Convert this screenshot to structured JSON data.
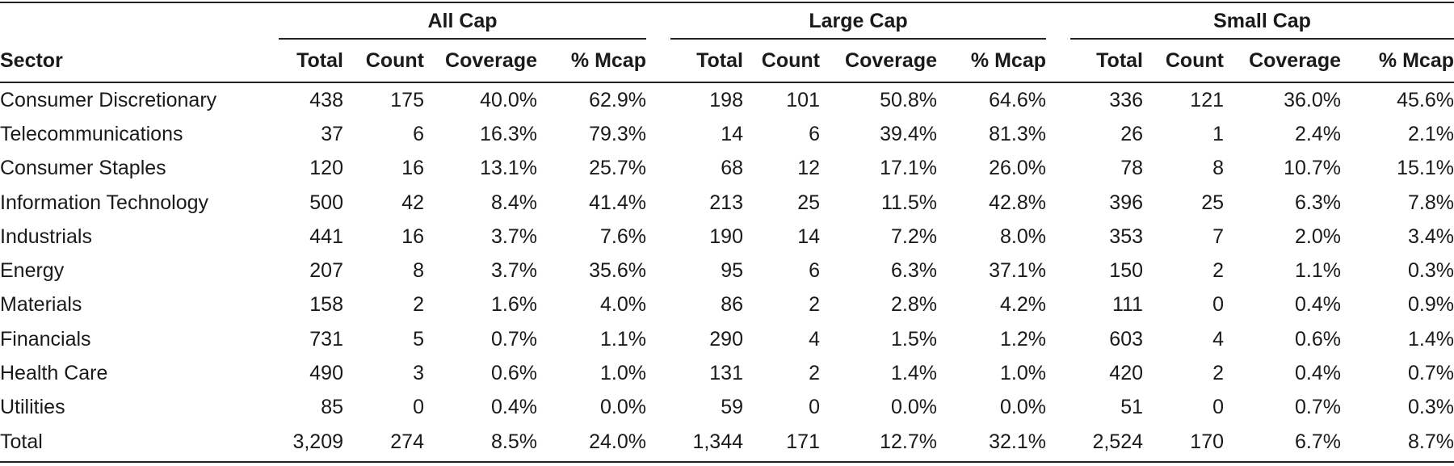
{
  "groups": {
    "all_cap": "All Cap",
    "large_cap": "Large Cap",
    "small_cap": "Small Cap"
  },
  "columns": {
    "sector": "Sector",
    "total": "Total",
    "count": "Count",
    "coverage": "Coverage",
    "mcap": "% Mcap"
  },
  "rows": [
    {
      "sector": "Consumer Discretionary",
      "all": [
        "438",
        "175",
        "40.0%",
        "62.9%"
      ],
      "large": [
        "198",
        "101",
        "50.8%",
        "64.6%"
      ],
      "small": [
        "336",
        "121",
        "36.0%",
        "45.6%"
      ]
    },
    {
      "sector": "Telecommunications",
      "all": [
        "37",
        "6",
        "16.3%",
        "79.3%"
      ],
      "large": [
        "14",
        "6",
        "39.4%",
        "81.3%"
      ],
      "small": [
        "26",
        "1",
        "2.4%",
        "2.1%"
      ]
    },
    {
      "sector": "Consumer Staples",
      "all": [
        "120",
        "16",
        "13.1%",
        "25.7%"
      ],
      "large": [
        "68",
        "12",
        "17.1%",
        "26.0%"
      ],
      "small": [
        "78",
        "8",
        "10.7%",
        "15.1%"
      ]
    },
    {
      "sector": "Information Technology",
      "all": [
        "500",
        "42",
        "8.4%",
        "41.4%"
      ],
      "large": [
        "213",
        "25",
        "11.5%",
        "42.8%"
      ],
      "small": [
        "396",
        "25",
        "6.3%",
        "7.8%"
      ]
    },
    {
      "sector": "Industrials",
      "all": [
        "441",
        "16",
        "3.7%",
        "7.6%"
      ],
      "large": [
        "190",
        "14",
        "7.2%",
        "8.0%"
      ],
      "small": [
        "353",
        "7",
        "2.0%",
        "3.4%"
      ]
    },
    {
      "sector": "Energy",
      "all": [
        "207",
        "8",
        "3.7%",
        "35.6%"
      ],
      "large": [
        "95",
        "6",
        "6.3%",
        "37.1%"
      ],
      "small": [
        "150",
        "2",
        "1.1%",
        "0.3%"
      ]
    },
    {
      "sector": "Materials",
      "all": [
        "158",
        "2",
        "1.6%",
        "4.0%"
      ],
      "large": [
        "86",
        "2",
        "2.8%",
        "4.2%"
      ],
      "small": [
        "111",
        "0",
        "0.4%",
        "0.9%"
      ]
    },
    {
      "sector": "Financials",
      "all": [
        "731",
        "5",
        "0.7%",
        "1.1%"
      ],
      "large": [
        "290",
        "4",
        "1.5%",
        "1.2%"
      ],
      "small": [
        "603",
        "4",
        "0.6%",
        "1.4%"
      ]
    },
    {
      "sector": "Health Care",
      "all": [
        "490",
        "3",
        "0.6%",
        "1.0%"
      ],
      "large": [
        "131",
        "2",
        "1.4%",
        "1.0%"
      ],
      "small": [
        "420",
        "2",
        "0.4%",
        "0.7%"
      ]
    },
    {
      "sector": "Utilities",
      "all": [
        "85",
        "0",
        "0.4%",
        "0.0%"
      ],
      "large": [
        "59",
        "0",
        "0.0%",
        "0.0%"
      ],
      "small": [
        "51",
        "0",
        "0.7%",
        "0.3%"
      ]
    },
    {
      "sector": "Total",
      "all": [
        "3,209",
        "274",
        "8.5%",
        "24.0%"
      ],
      "large": [
        "1,344",
        "171",
        "12.7%",
        "32.1%"
      ],
      "small": [
        "2,524",
        "170",
        "6.7%",
        "8.7%"
      ]
    }
  ]
}
